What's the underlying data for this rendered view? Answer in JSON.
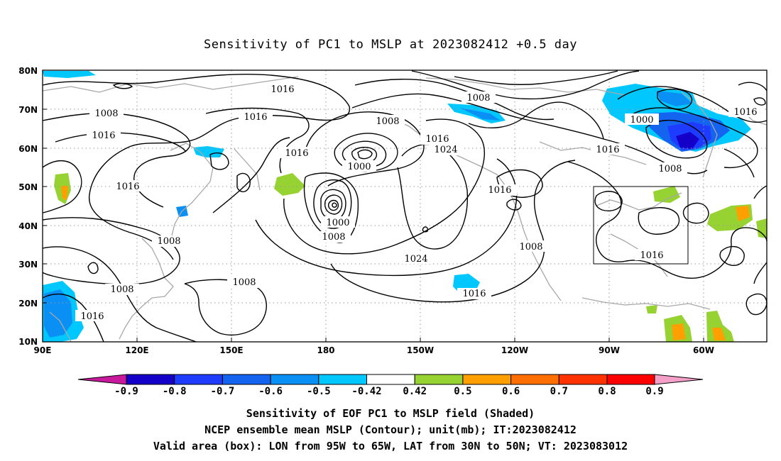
{
  "title": "Sensitivity of PC1 to MSLP at 2023082412 +0.5 day",
  "lat_labels": [
    "80N",
    "70N",
    "60N",
    "50N",
    "40N",
    "30N",
    "20N",
    "10N"
  ],
  "lon_labels": [
    "90E",
    "120E",
    "150E",
    "180",
    "150W",
    "120W",
    "90W",
    "60W"
  ],
  "contour_labels": [
    "1016",
    "1008",
    "1008",
    "1016",
    "1016",
    "1016",
    "1016",
    "1008",
    "1000",
    "1008",
    "1000",
    "1016",
    "1024",
    "1016",
    "1024",
    "1016",
    "1000",
    "1008",
    "1008",
    "1008",
    "1008",
    "1016",
    "1016",
    "1016",
    "1008",
    "1016"
  ],
  "colorbar": {
    "labels": [
      "-0.9",
      "-0.8",
      "-0.7",
      "-0.6",
      "-0.5",
      "-0.42",
      "0.42",
      "0.5",
      "0.6",
      "0.7",
      "0.8",
      "0.9"
    ],
    "colors": [
      "#1400c8",
      "#1e3cff",
      "#1464f0",
      "#0a90f5",
      "#00c8ff",
      "#ffffff",
      "#96d232",
      "#ffa000",
      "#ff6e00",
      "#ff3200",
      "#ff0000"
    ],
    "low_end_color": "#c8189c",
    "high_end_color": "#f5a0c8"
  },
  "caption": [
    "Sensitivity of EOF PC1 to MSLP field (Shaded)",
    "NCEP ensemble mean MSLP (Contour); unit(mb); IT:2023082412",
    "Valid area (box): LON from 95W to 65W, LAT from 30N to 50N; VT: 2023083012"
  ],
  "valid_area": {
    "lon_min": -95,
    "lon_max": -65,
    "lat_min": 30,
    "lat_max": 50
  },
  "domain": {
    "lon_min": 90,
    "lon_max": 320,
    "lat_min": 10,
    "lat_max": 80
  }
}
